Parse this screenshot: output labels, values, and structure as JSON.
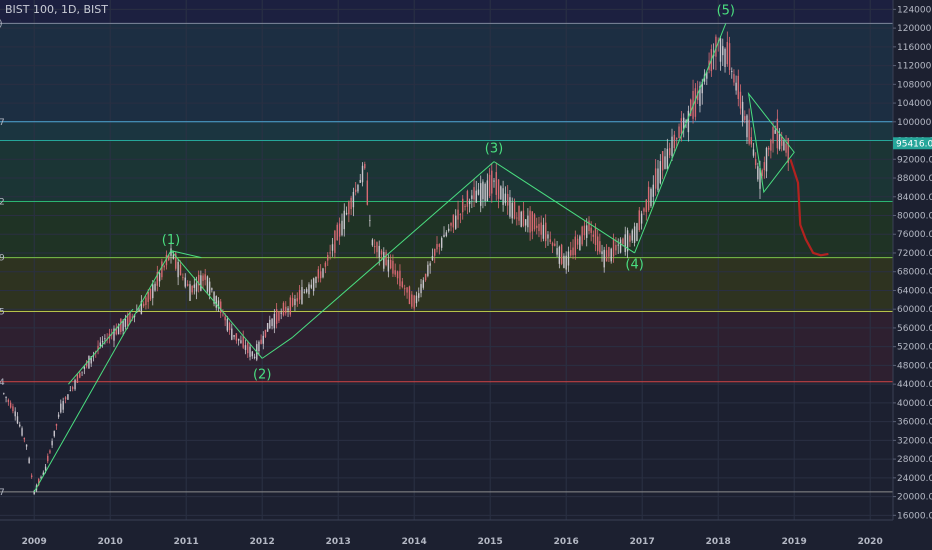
{
  "title": "BIST 100, 1D, BIST",
  "colors": {
    "background": "#1c2030",
    "wave": "#4ade80",
    "candle_up": "#c9c6cd",
    "candle_down": "#d86a73",
    "projection": "#b3221f",
    "price_tag": "#26a69a"
  },
  "chart_data": {
    "type": "candlestick",
    "title": "BIST 100, 1D, BIST",
    "x_ticks": [
      "2009",
      "2010",
      "2011",
      "2012",
      "2013",
      "2014",
      "2015",
      "2016",
      "2017",
      "2018",
      "2019",
      "2020"
    ],
    "y_ticks": [
      16000,
      20000,
      24000,
      28000,
      32000,
      36000,
      40000,
      44000,
      48000,
      52000,
      56000,
      60000,
      64000,
      68000,
      72000,
      76000,
      80000,
      84000,
      88000,
      92000,
      96000,
      100000,
      104000,
      108000,
      112000,
      116000,
      120000,
      124000
    ],
    "y_tick_labels": [
      "16000.00",
      "20000.00",
      "24000.00",
      "28000.00",
      "32000.00",
      "36000.00",
      "40000.00",
      "44000.00",
      "48000.00",
      "52000.00",
      "56000.00",
      "60000.00",
      "64000.00",
      "68000.00",
      "72000.00",
      "76000.00",
      "80000.00",
      "84000.00",
      "88000.00",
      "92000.00",
      "96000.00",
      "100000.00",
      "104000.00",
      "108000.00",
      "112000.00",
      "116000.00",
      "120000.00",
      "124000.00"
    ],
    "ylim": [
      15000,
      126000
    ],
    "xlim": [
      2008.55,
      2020.3
    ],
    "last_price": "95416.03",
    "last_price_value": 95416,
    "price_path": [
      [
        2008.6,
        42000
      ],
      [
        2008.75,
        38000
      ],
      [
        2008.9,
        31000
      ],
      [
        2009.0,
        21000
      ],
      [
        2009.15,
        26000
      ],
      [
        2009.35,
        39000
      ],
      [
        2009.6,
        46000
      ],
      [
        2009.9,
        53000
      ],
      [
        2010.2,
        57000
      ],
      [
        2010.5,
        62000
      ],
      [
        2010.8,
        72000
      ],
      [
        2011.05,
        64000
      ],
      [
        2011.25,
        67000
      ],
      [
        2011.6,
        55000
      ],
      [
        2011.9,
        50000
      ],
      [
        2012.1,
        57000
      ],
      [
        2012.4,
        61000
      ],
      [
        2012.8,
        68000
      ],
      [
        2013.05,
        78000
      ],
      [
        2013.35,
        90000
      ],
      [
        2013.45,
        74000
      ],
      [
        2013.75,
        68000
      ],
      [
        2014.0,
        61000
      ],
      [
        2014.3,
        73000
      ],
      [
        2014.7,
        83000
      ],
      [
        2015.05,
        87000
      ],
      [
        2015.35,
        80000
      ],
      [
        2015.7,
        77000
      ],
      [
        2016.0,
        70000
      ],
      [
        2016.3,
        78000
      ],
      [
        2016.5,
        71000
      ],
      [
        2016.9,
        76000
      ],
      [
        2017.3,
        92000
      ],
      [
        2017.7,
        104000
      ],
      [
        2018.0,
        117000
      ],
      [
        2018.15,
        113000
      ],
      [
        2018.35,
        101000
      ],
      [
        2018.55,
        88000
      ],
      [
        2018.75,
        98000
      ],
      [
        2018.95,
        93000
      ]
    ],
    "fib_levels": [
      {
        "value": 121000,
        "color": "#7f879c",
        "zone": "#242a3c"
      },
      {
        "value": 100000,
        "color": "#4da8d6",
        "zone": "#1c2e42"
      },
      {
        "value": 96000,
        "color": "#26a69a",
        "zone": "#1b3540"
      },
      {
        "value": 83000,
        "color": "#2bb573",
        "zone": "#1b3535"
      },
      {
        "value": 71000,
        "color": "#7cc24a",
        "zone": "#1f3325"
      },
      {
        "value": 59500,
        "color": "#b6c24a",
        "zone": "#2e3320"
      },
      {
        "value": 44500,
        "color": "#d24545",
        "zone": "#2e2030"
      },
      {
        "value": 21000,
        "color": "#8c8c8c",
        "zone": null
      }
    ],
    "left_edge_labels": [
      ")",
      "7",
      "2",
      "9",
      "5",
      "4",
      "7"
    ],
    "left_edge_values": [
      121000,
      100000,
      83000,
      71000,
      59500,
      44500,
      21000
    ],
    "waves": [
      {
        "label": "(1)",
        "x": 2010.8,
        "y": 72000,
        "pos": "above"
      },
      {
        "label": "(2)",
        "x": 2012.0,
        "y": 49000,
        "pos": "below"
      },
      {
        "label": "(3)",
        "x": 2015.05,
        "y": 91500,
        "pos": "above"
      },
      {
        "label": "(4)",
        "x": 2016.9,
        "y": 72500,
        "pos": "below"
      },
      {
        "label": "(5)",
        "x": 2018.1,
        "y": 121000,
        "pos": "above"
      }
    ],
    "wave_lines": [
      [
        [
          2009.0,
          21000
        ],
        [
          2010.8,
          72500
        ]
      ],
      [
        [
          2010.8,
          72500
        ],
        [
          2012.0,
          49500
        ]
      ],
      [
        [
          2012.4,
          54000
        ],
        [
          2015.05,
          91500
        ]
      ],
      [
        [
          2015.05,
          91500
        ],
        [
          2016.9,
          72000
        ]
      ],
      [
        [
          2016.9,
          72000
        ],
        [
          2018.1,
          121000
        ]
      ]
    ],
    "wave_lines2": [
      [
        [
          2009.45,
          44000
        ],
        [
          2010.3,
          60000
        ]
      ],
      [
        [
          2010.8,
          72500
        ],
        [
          2011.2,
          71000
        ]
      ],
      [
        [
          2012.0,
          49500
        ],
        [
          2012.4,
          54000
        ]
      ]
    ],
    "triangle": [
      [
        2018.4,
        106000
      ],
      [
        2019.0,
        93500
      ],
      [
        2018.6,
        85000
      ]
    ],
    "projection": [
      [
        2018.95,
        92000
      ],
      [
        2019.05,
        87000
      ],
      [
        2019.08,
        78000
      ],
      [
        2019.15,
        75000
      ],
      [
        2019.25,
        72000
      ],
      [
        2019.35,
        71500
      ],
      [
        2019.45,
        71800
      ]
    ]
  }
}
